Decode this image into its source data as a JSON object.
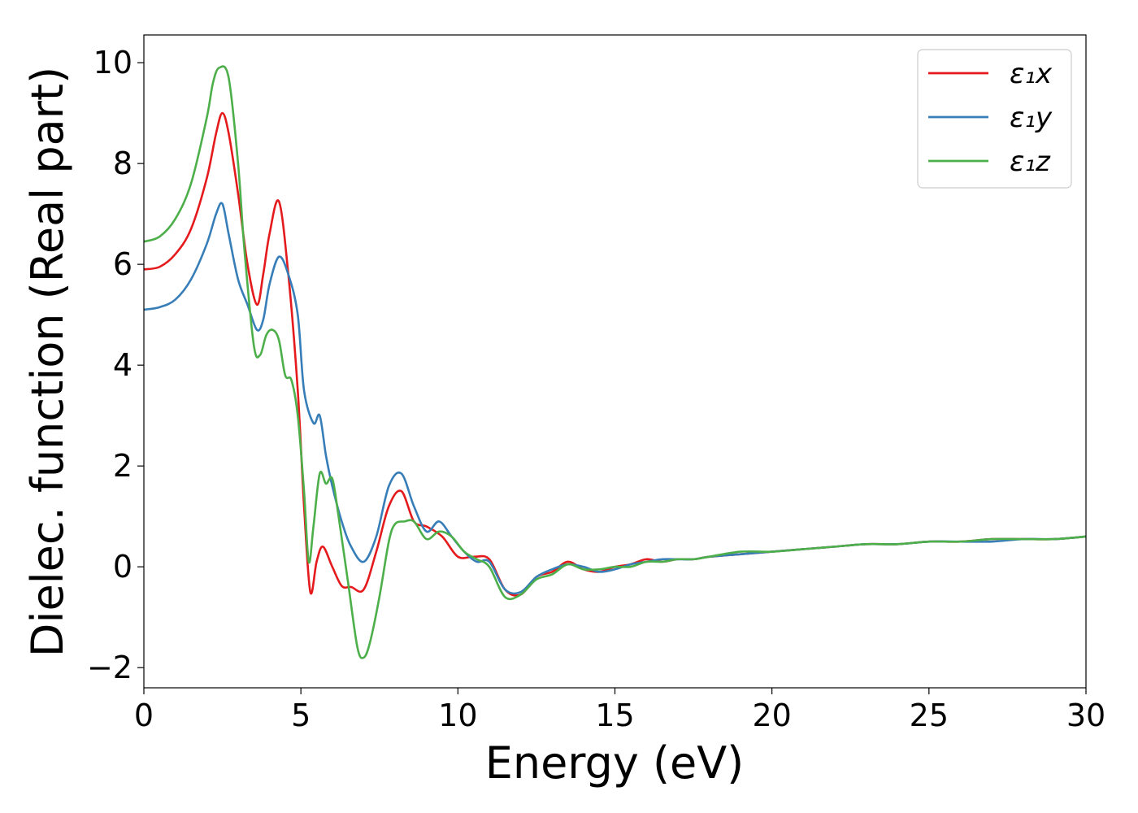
{
  "chart_data": {
    "type": "line",
    "title": "",
    "xlabel": "Energy (eV)",
    "ylabel": "Dielec. function (Real part)",
    "xlim": [
      0,
      30
    ],
    "ylim": [
      -2.4,
      10.55
    ],
    "xticks": [
      0,
      5,
      10,
      15,
      20,
      25,
      30
    ],
    "yticks": [
      -2,
      0,
      2,
      4,
      6,
      8,
      10
    ],
    "xtick_labels": [
      "0",
      "5",
      "10",
      "15",
      "20",
      "25",
      "30"
    ],
    "ytick_labels": [
      "−2",
      "0",
      "2",
      "4",
      "6",
      "8",
      "10"
    ],
    "grid": false,
    "legend": "top-right",
    "series": [
      {
        "name": "ε₁x",
        "color": "#e41a1c",
        "x": [
          0,
          0.5,
          1,
          1.5,
          2,
          2.3,
          2.5,
          2.7,
          3,
          3.3,
          3.6,
          3.8,
          4,
          4.3,
          4.6,
          4.9,
          5.1,
          5.3,
          5.5,
          5.7,
          6,
          6.3,
          6.6,
          7,
          7.4,
          7.8,
          8.2,
          8.6,
          9,
          9.5,
          10,
          10.5,
          11,
          11.5,
          12,
          12.5,
          13,
          13.5,
          14,
          14.5,
          15,
          15.5,
          16,
          16.5,
          17,
          17.5,
          18,
          19,
          20,
          21,
          22,
          23,
          24,
          25,
          26,
          27,
          28,
          29,
          30
        ],
        "y": [
          5.9,
          5.95,
          6.2,
          6.7,
          7.7,
          8.6,
          9.0,
          8.6,
          7.4,
          6.0,
          5.2,
          5.8,
          6.6,
          7.25,
          5.8,
          3.5,
          1.2,
          -0.5,
          0.1,
          0.4,
          0.0,
          -0.38,
          -0.4,
          -0.45,
          0.3,
          1.2,
          1.5,
          0.9,
          0.8,
          0.6,
          0.2,
          0.2,
          0.15,
          -0.45,
          -0.55,
          -0.2,
          -0.1,
          0.1,
          -0.05,
          -0.1,
          0.0,
          0.05,
          0.15,
          0.1,
          0.15,
          0.15,
          0.2,
          0.25,
          0.3,
          0.35,
          0.4,
          0.45,
          0.45,
          0.5,
          0.5,
          0.55,
          0.55,
          0.55,
          0.6
        ]
      },
      {
        "name": "ε₁y",
        "color": "#377eb8",
        "x": [
          0,
          0.5,
          1,
          1.5,
          2,
          2.3,
          2.5,
          2.7,
          3,
          3.3,
          3.6,
          3.8,
          4,
          4.3,
          4.6,
          4.9,
          5.1,
          5.4,
          5.6,
          5.8,
          6,
          6.3,
          6.6,
          7,
          7.4,
          7.8,
          8.2,
          8.6,
          9,
          9.4,
          9.8,
          10.2,
          10.6,
          11,
          11.5,
          12,
          12.5,
          13,
          13.5,
          14,
          14.5,
          15,
          15.5,
          16,
          16.5,
          17,
          17.5,
          18,
          19,
          20,
          21,
          22,
          23,
          24,
          25,
          26,
          27,
          28,
          29,
          30
        ],
        "y": [
          5.1,
          5.15,
          5.3,
          5.7,
          6.4,
          7.0,
          7.2,
          6.6,
          5.7,
          5.2,
          4.7,
          4.9,
          5.6,
          6.15,
          5.8,
          5.0,
          3.5,
          2.85,
          3.0,
          2.2,
          1.6,
          0.9,
          0.4,
          0.1,
          0.6,
          1.6,
          1.85,
          1.2,
          0.7,
          0.9,
          0.6,
          0.3,
          0.1,
          0.1,
          -0.45,
          -0.5,
          -0.2,
          -0.05,
          0.05,
          0.0,
          -0.1,
          -0.05,
          0.05,
          0.1,
          0.15,
          0.15,
          0.15,
          0.2,
          0.25,
          0.3,
          0.35,
          0.4,
          0.45,
          0.45,
          0.5,
          0.5,
          0.5,
          0.55,
          0.55,
          0.6
        ]
      },
      {
        "name": "ε₁z",
        "color": "#4daf4a",
        "x": [
          0,
          0.5,
          1,
          1.5,
          2,
          2.2,
          2.4,
          2.7,
          3,
          3.2,
          3.5,
          3.7,
          3.9,
          4.1,
          4.3,
          4.5,
          4.7,
          4.9,
          5.1,
          5.25,
          5.4,
          5.6,
          5.8,
          6,
          6.2,
          6.5,
          6.8,
          7.0,
          7.2,
          7.5,
          7.8,
          8.0,
          8.3,
          8.6,
          9,
          9.4,
          9.8,
          10.2,
          10.6,
          11,
          11.5,
          12,
          12.5,
          13,
          13.5,
          14,
          14.5,
          15,
          15.5,
          16,
          16.5,
          17,
          17.5,
          18,
          19,
          20,
          21,
          22,
          23,
          24,
          25,
          26,
          27,
          28,
          29,
          30
        ],
        "y": [
          6.45,
          6.55,
          6.9,
          7.6,
          8.9,
          9.6,
          9.9,
          9.7,
          8.0,
          6.3,
          4.4,
          4.2,
          4.6,
          4.7,
          4.5,
          3.8,
          3.7,
          3.0,
          1.5,
          0.1,
          0.8,
          1.85,
          1.65,
          1.75,
          1.0,
          -0.3,
          -1.6,
          -1.8,
          -1.5,
          -0.6,
          0.5,
          0.85,
          0.9,
          0.9,
          0.55,
          0.7,
          0.6,
          0.3,
          0.15,
          0.0,
          -0.6,
          -0.55,
          -0.25,
          -0.15,
          0.05,
          -0.05,
          -0.05,
          0.0,
          0.0,
          0.1,
          0.1,
          0.15,
          0.15,
          0.2,
          0.3,
          0.3,
          0.35,
          0.4,
          0.45,
          0.45,
          0.5,
          0.5,
          0.55,
          0.55,
          0.55,
          0.6
        ]
      }
    ]
  }
}
